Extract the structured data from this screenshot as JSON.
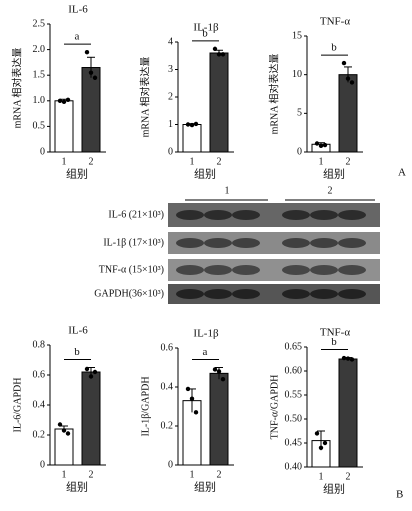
{
  "chart_data": [
    {
      "type": "bar",
      "title": "IL-6",
      "ylabel": "mRNA 相对表达量",
      "xlabel": "组别",
      "categories": [
        "1",
        "2"
      ],
      "values": [
        1.0,
        1.65
      ],
      "errors": [
        0.03,
        0.2
      ],
      "points": [
        [
          1.0,
          0.98,
          1.02
        ],
        [
          1.95,
          1.55,
          1.45
        ]
      ],
      "annotation": "a",
      "colors": [
        "#ffffff",
        "#3a3a3a"
      ],
      "ylim": [
        0,
        2.5
      ],
      "yticks": [
        0,
        0.5,
        {
          "value": 1,
          "label": "1.0"
        },
        1.5,
        {
          "value": 2,
          "label": "2.0"
        },
        2.5
      ]
    },
    {
      "type": "bar",
      "title": "IL-1β",
      "ylabel": "mRNA 相对表达量",
      "xlabel": "组别",
      "categories": [
        "1",
        "2"
      ],
      "values": [
        1.0,
        3.6
      ],
      "errors": [
        0.03,
        0.1
      ],
      "points": [
        [
          1.0,
          0.98,
          1.02
        ],
        [
          3.75,
          3.55,
          3.55
        ]
      ],
      "annotation": "b",
      "colors": [
        "#ffffff",
        "#3a3a3a"
      ],
      "ylim": [
        0,
        4
      ],
      "yticks": [
        0,
        1,
        2,
        3,
        4
      ]
    },
    {
      "type": "bar",
      "title": "TNF-α",
      "ylabel": "mRNA 相对表达量",
      "xlabel": "组别",
      "categories": [
        "1",
        "2"
      ],
      "values": [
        1.0,
        10.0
      ],
      "errors": [
        0.2,
        1.0
      ],
      "points": [
        [
          1.1,
          0.8,
          0.9
        ],
        [
          11.5,
          9.5,
          9.0
        ]
      ],
      "annotation": "b",
      "colors": [
        "#ffffff",
        "#3a3a3a"
      ],
      "ylim": [
        0,
        15
      ],
      "yticks": [
        0,
        5,
        10,
        15
      ]
    },
    {
      "type": "bar",
      "title": "IL-6",
      "ylabel": "IL-6/GAPDH",
      "xlabel": "组别",
      "categories": [
        "1",
        "2"
      ],
      "values": [
        0.24,
        0.62
      ],
      "errors": [
        0.02,
        0.03
      ],
      "points": [
        [
          0.27,
          0.23,
          0.21
        ],
        [
          0.64,
          0.59,
          0.62
        ]
      ],
      "annotation": "b",
      "colors": [
        "#ffffff",
        "#3a3a3a"
      ],
      "ylim": [
        0,
        0.8
      ],
      "yticks": [
        0,
        0.2,
        0.4,
        0.6,
        0.8
      ]
    },
    {
      "type": "bar",
      "title": "IL-1β",
      "ylabel": "IL-1β/GAPDH",
      "xlabel": "组别",
      "categories": [
        "1",
        "2"
      ],
      "values": [
        0.33,
        0.47
      ],
      "errors": [
        0.06,
        0.03
      ],
      "points": [
        [
          0.39,
          0.34,
          0.27
        ],
        [
          0.49,
          0.48,
          0.44
        ]
      ],
      "annotation": "a",
      "colors": [
        "#ffffff",
        "#3a3a3a"
      ],
      "ylim": [
        0,
        0.6
      ],
      "yticks": [
        0,
        0.2,
        0.4,
        0.6
      ]
    },
    {
      "type": "bar",
      "title": "TNF-α",
      "ylabel": "TNF-α/GAPDH",
      "xlabel": "组别",
      "categories": [
        "1",
        "2"
      ],
      "values": [
        0.455,
        0.625
      ],
      "errors": [
        0.02,
        0.003
      ],
      "points": [
        [
          0.47,
          0.44,
          0.45
        ],
        [
          0.627,
          0.626,
          0.624
        ]
      ],
      "annotation": "b",
      "colors": [
        "#ffffff",
        "#3a3a3a"
      ],
      "ylim": [
        0.4,
        0.65
      ],
      "yticks": [
        {
          "value": 0.4,
          "label": "0.40"
        },
        0.45,
        {
          "value": 0.5,
          "label": "0.50"
        },
        0.55,
        {
          "value": 0.6,
          "label": "0.60"
        },
        0.65
      ]
    }
  ],
  "blot": {
    "groups": [
      "1",
      "2"
    ],
    "rows": [
      "IL-6 (21×10³)",
      "IL-1β (17×10³)",
      "TNF-α (15×10³)",
      "GAPDH(36×10³)"
    ]
  },
  "panel_labels": [
    "A",
    "B"
  ]
}
